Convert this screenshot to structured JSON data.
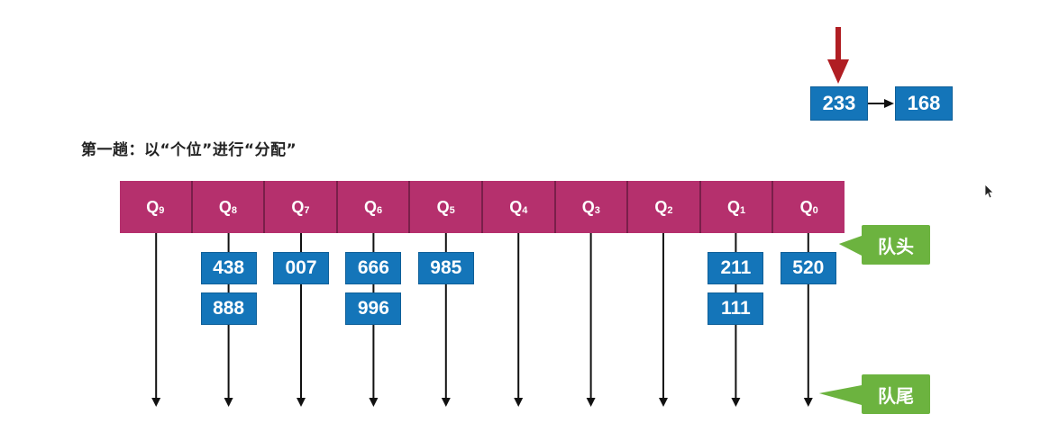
{
  "title": "第一趟：以“个位”进行“分配”",
  "queues": [
    {
      "id": "Q9",
      "letter": "Q",
      "sub": "9",
      "items": []
    },
    {
      "id": "Q8",
      "letter": "Q",
      "sub": "8",
      "items": [
        "438",
        "888"
      ]
    },
    {
      "id": "Q7",
      "letter": "Q",
      "sub": "7",
      "items": [
        "007"
      ]
    },
    {
      "id": "Q6",
      "letter": "Q",
      "sub": "6",
      "items": [
        "666",
        "996"
      ]
    },
    {
      "id": "Q5",
      "letter": "Q",
      "sub": "5",
      "items": [
        "985"
      ]
    },
    {
      "id": "Q4",
      "letter": "Q",
      "sub": "4",
      "items": []
    },
    {
      "id": "Q3",
      "letter": "Q",
      "sub": "3",
      "items": []
    },
    {
      "id": "Q2",
      "letter": "Q",
      "sub": "2",
      "items": []
    },
    {
      "id": "Q1",
      "letter": "Q",
      "sub": "1",
      "items": [
        "211",
        "111"
      ]
    },
    {
      "id": "Q0",
      "letter": "Q",
      "sub": "0",
      "items": [
        "520"
      ]
    }
  ],
  "input_list": [
    "233",
    "168"
  ],
  "labels": {
    "head": "队头",
    "tail": "队尾"
  },
  "colors": {
    "queue_fill": "#b5306d",
    "node_fill": "#1475b9",
    "tag_fill": "#6cb33f",
    "pointer_arrow": "#b01e23"
  }
}
